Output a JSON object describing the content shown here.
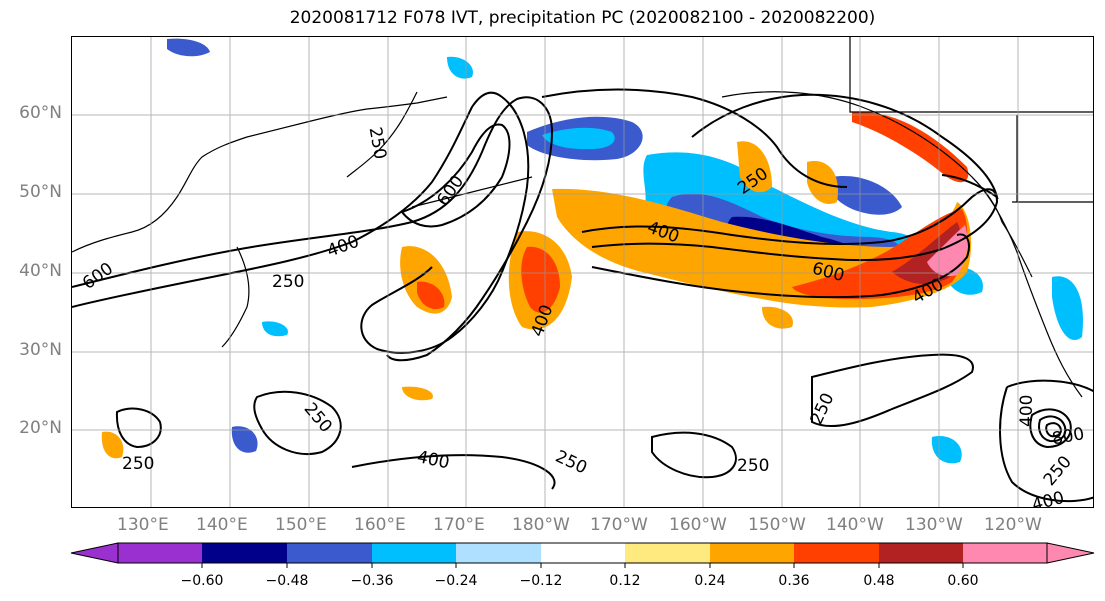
{
  "title": "2020081712 F078 IVT, precipitation PC (2020082100 - 2020082200)",
  "map": {
    "lat_labels": [
      "60°N",
      "50°N",
      "40°N",
      "30°N",
      "20°N"
    ],
    "lon_labels": [
      "130°E",
      "140°E",
      "150°E",
      "160°E",
      "170°E",
      "180°W",
      "170°W",
      "160°W",
      "150°W",
      "140°W",
      "130°W",
      "120°W"
    ],
    "contour_labels": [
      "600",
      "400",
      "250",
      "600",
      "400",
      "250",
      "400",
      "250",
      "250",
      "400",
      "250",
      "250",
      "400",
      "250",
      "800",
      "400",
      "250",
      "400",
      "600",
      "250"
    ]
  },
  "colorbar": {
    "colors": [
      "#9b30d0",
      "#00008b",
      "#3a5acd",
      "#00bfff",
      "#b0e0ff",
      "#ffffff",
      "#ffea80",
      "#ffa500",
      "#ff4000",
      "#b22222",
      "#ff88b0",
      "#ff88b0"
    ],
    "tick_labels": [
      "−0.60",
      "−0.48",
      "−0.36",
      "−0.24",
      "−0.12",
      "0.12",
      "0.24",
      "0.36",
      "0.48",
      "0.60"
    ]
  },
  "palette": {
    "dark_blue": "#00008b",
    "mid_blue": "#3a5acd",
    "sky_blue": "#00bfff",
    "light_blue": "#b0e0ff",
    "light_yellow": "#ffea80",
    "orange": "#ffa500",
    "red_orange": "#ff4000",
    "dark_red": "#b22222",
    "pink": "#ff88b0",
    "purple": "#9b30d0"
  }
}
